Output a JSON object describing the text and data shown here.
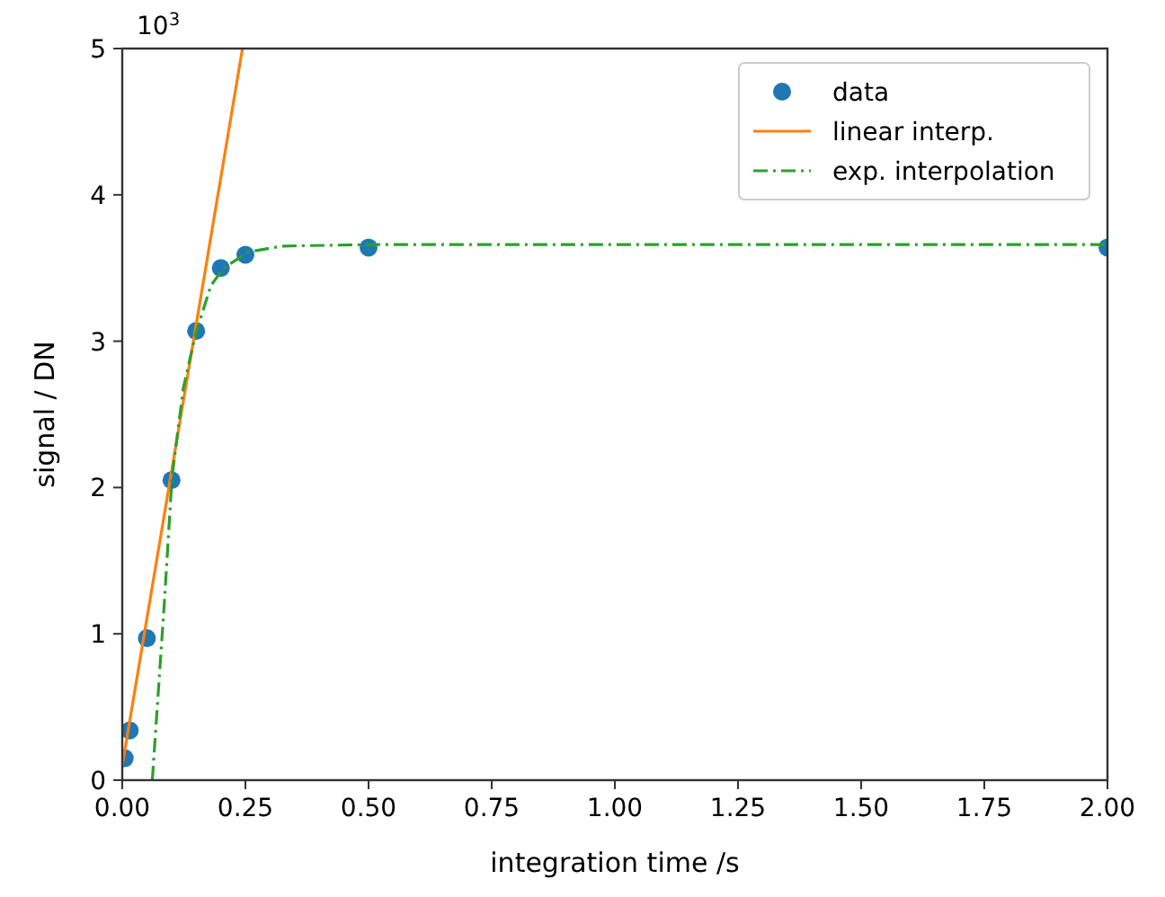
{
  "chart_data": {
    "type": "line",
    "xlabel": "integration time /s",
    "ylabel": "signal / DN",
    "annotations": [
      "10$^{3}$"
    ],
    "xlim": [
      0,
      2
    ],
    "xticks": [
      {
        "value": 0,
        "label": "0.00"
      },
      {
        "value": 0.25,
        "label": "0.25"
      },
      {
        "value": 0.5,
        "label": "0.50"
      },
      {
        "value": 0.75,
        "label": "0.75"
      },
      {
        "value": 1,
        "label": "1.00"
      },
      {
        "value": 1.25,
        "label": "1.25"
      },
      {
        "value": 1.5,
        "label": "1.50"
      },
      {
        "value": 1.75,
        "label": "1.75"
      },
      {
        "value": 2,
        "label": "2.00"
      }
    ],
    "ylim": [
      0,
      5
    ],
    "yticks": [
      0,
      1,
      2,
      3,
      4,
      5
    ],
    "legend": "top right",
    "grid": false,
    "series": [
      {
        "name": "data",
        "type": "scatter",
        "marker": "circle",
        "color": "#1f77b4",
        "x": [
          0.005,
          0.015,
          0.05,
          0.1,
          0.15,
          0.2,
          0.25,
          0.5,
          2.0
        ],
        "values": [
          0.15,
          0.34,
          0.97,
          2.05,
          3.07,
          3.5,
          3.59,
          3.64,
          3.64
        ]
      },
      {
        "name": "linear interp.",
        "line_style": "solid",
        "color": "#ff7f0e",
        "x": [
          0,
          0.244
        ],
        "values": [
          0.1,
          5.0
        ]
      },
      {
        "name": "exp. interpolation",
        "line_style": "dashdot",
        "color": "#2ca02c",
        "x": [
          0.061,
          0.086,
          0.101,
          0.124,
          0.149,
          0.18,
          0.206,
          0.256,
          0.326,
          0.5,
          1.0,
          2.0
        ],
        "values": [
          0,
          1.24,
          2.07,
          2.68,
          3.05,
          3.38,
          3.5,
          3.61,
          3.65,
          3.66,
          3.66,
          3.66
        ]
      }
    ]
  }
}
